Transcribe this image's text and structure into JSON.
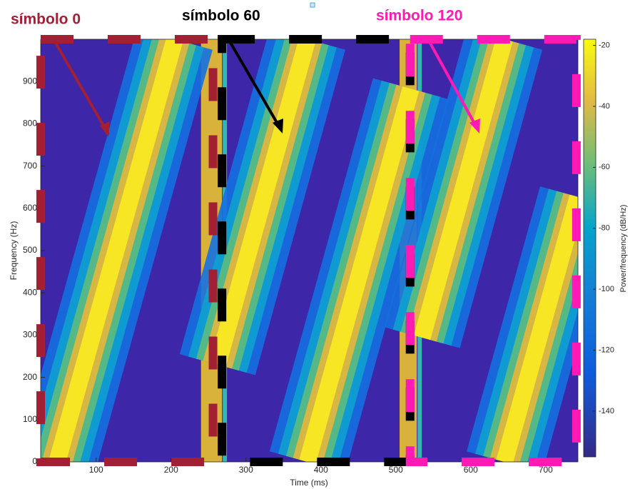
{
  "chart_data": {
    "type": "spectrogram",
    "xlabel": "Time (ms)",
    "ylabel": "Frequency (Hz)",
    "colorbar_label": "Power/frequency (dB/Hz)",
    "xlim": [
      26,
      743
    ],
    "ylim": [
      0,
      1000
    ],
    "clim": [
      -155,
      -18
    ],
    "xticks": [
      100,
      200,
      300,
      400,
      500,
      600,
      700
    ],
    "yticks": [
      0,
      100,
      200,
      300,
      400,
      500,
      600,
      700,
      800,
      900
    ],
    "cticks": [
      -20,
      -40,
      -60,
      -80,
      -100,
      -120,
      -140
    ],
    "ridges": [
      {
        "x": [
          48,
          205
        ],
        "y": [
          0,
          1000
        ]
      },
      {
        "x": [
          262,
          382
        ],
        "y": [
          230,
          1000
        ]
      },
      {
        "x": [
          382,
          520
        ],
        "y": [
          0,
          883
        ]
      },
      {
        "x": [
          535,
          645
        ],
        "y": [
          294,
          1000
        ]
      },
      {
        "x": [
          645,
          743
        ],
        "y": [
          0,
          627
        ]
      }
    ],
    "transitions": [
      [
        240,
        268
      ],
      [
        505,
        528
      ]
    ],
    "symbols": [
      {
        "label": "símbolo 0",
        "color": "#a31f34",
        "span": [
          26,
          256
        ]
      },
      {
        "label": "símbolo 60",
        "color": "#000000",
        "span": [
          268,
          519
        ]
      },
      {
        "label": "símbolo 120",
        "color": "#ff1ab3",
        "span": [
          519,
          741
        ]
      }
    ]
  }
}
